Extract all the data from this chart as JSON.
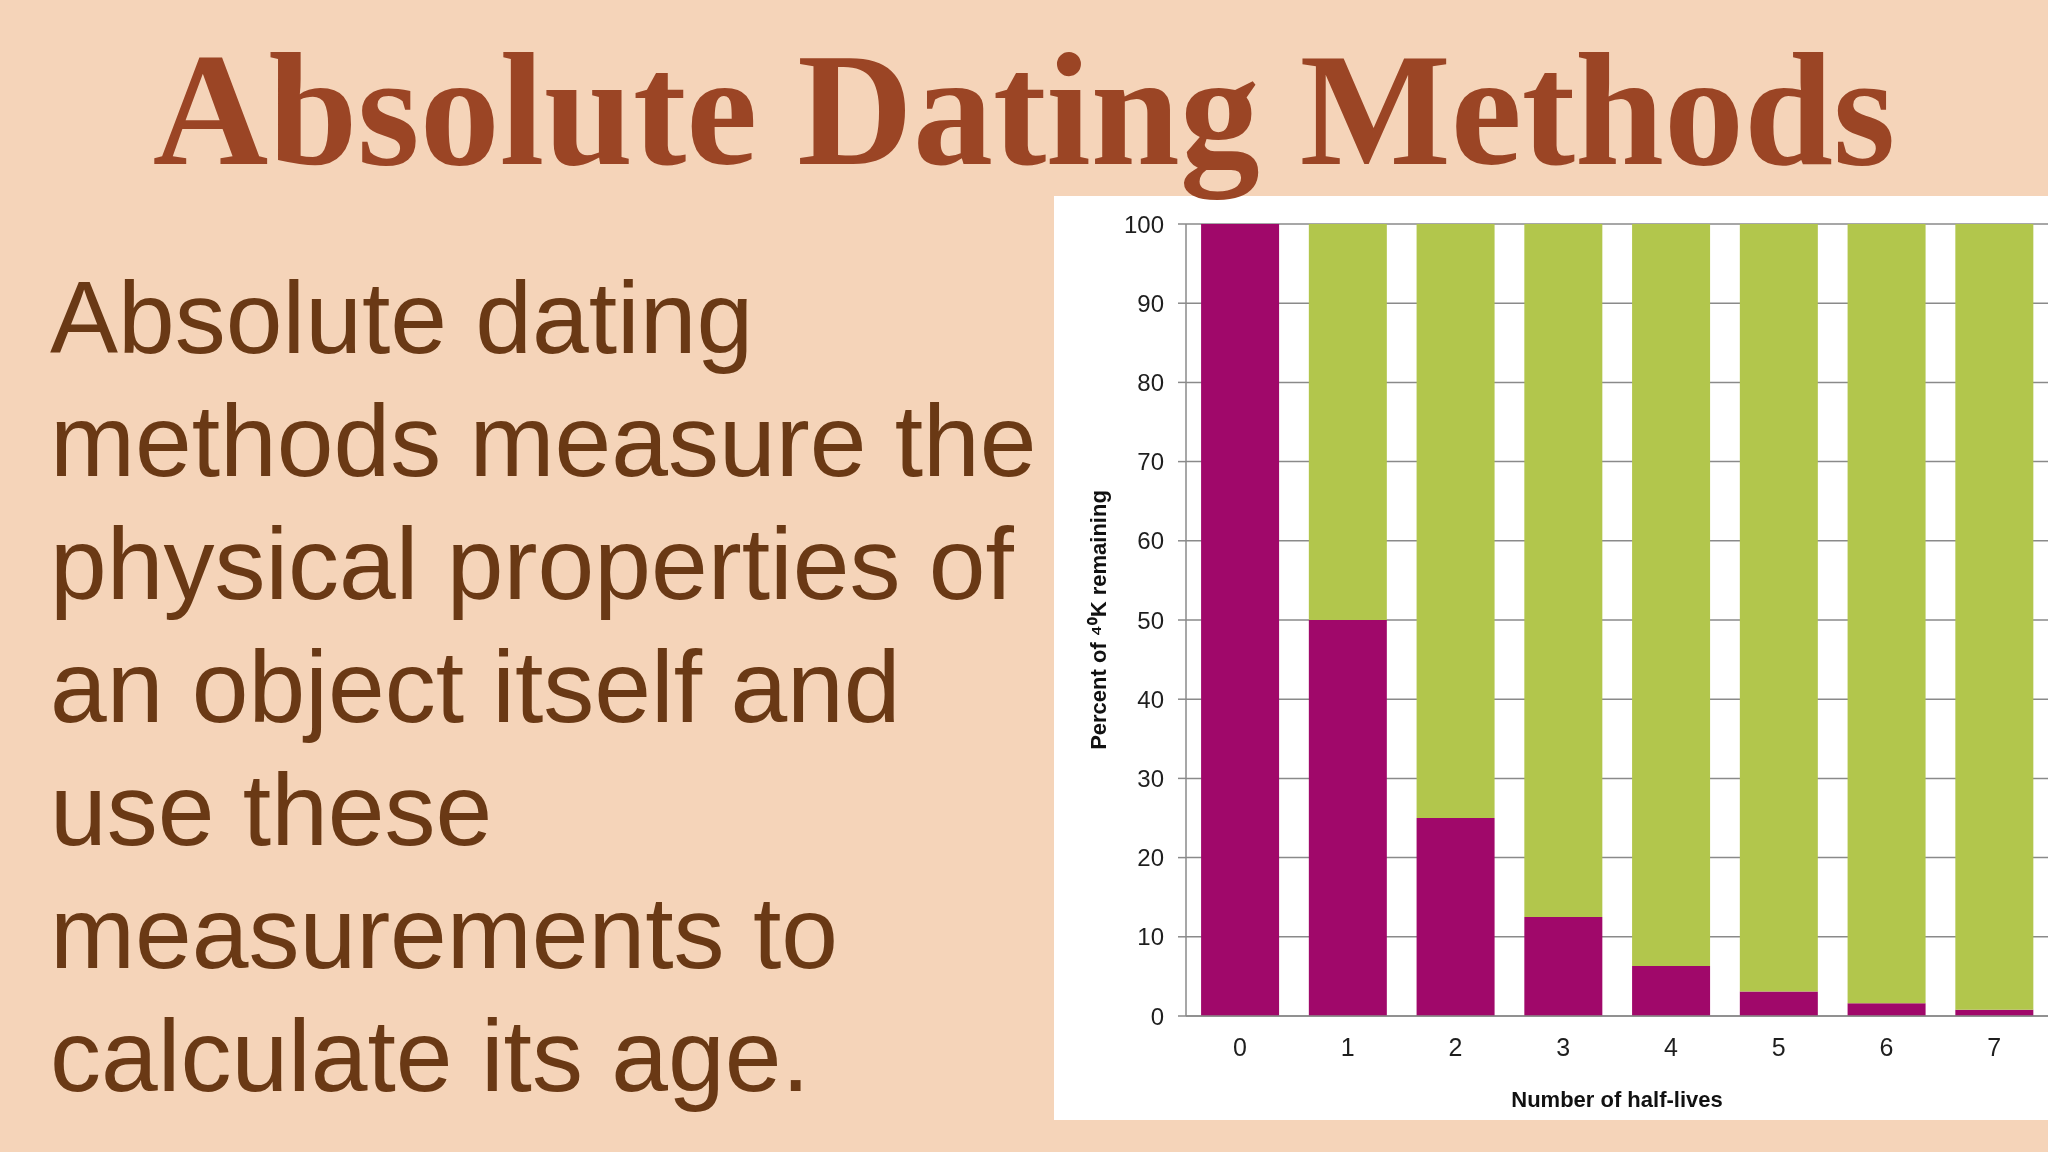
{
  "chart_data": {
    "type": "bar",
    "title": "Absolute Dating Methods",
    "annotations": [
      "Absolute dating methods measure the physical properties of an object itself and use these measurements to calculate its age."
    ],
    "xlabel": "Number of half-lives",
    "ylabel": "Percent of ⁴⁰K remaining",
    "categories": [
      "0",
      "1",
      "2",
      "3",
      "4",
      "5",
      "6",
      "7"
    ],
    "series": [
      {
        "color": "#a0086a",
        "values": [
          100,
          50,
          25,
          12.5,
          6.3,
          3.1,
          1.6,
          0.8
        ]
      },
      {
        "color": "#b2c64c",
        "values": [
          0,
          50,
          75,
          87.5,
          93.7,
          96.9,
          98.4,
          99.2
        ]
      }
    ],
    "stacked": true,
    "ylim": [
      0,
      100
    ],
    "yticks": [
      0,
      10,
      20,
      30,
      40,
      50,
      60,
      70,
      80,
      90,
      100
    ],
    "grid": "y"
  }
}
